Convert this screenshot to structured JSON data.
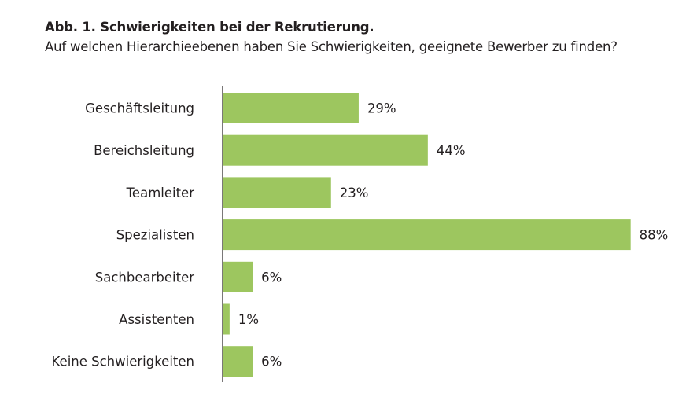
{
  "chart_data": {
    "type": "bar",
    "orientation": "horizontal",
    "title": "Abb. 1. Schwierigkeiten bei der Rekrutierung.",
    "subtitle": "Auf welchen Hierarchieebenen haben Sie Schwierigkeiten, geeignete Bewerber zu finden?",
    "categories": [
      "Geschäftsleitung",
      "Bereichsleitung",
      "Teamleiter",
      "Spezialisten",
      "Sachbearbeiter",
      "Assistenten",
      "Keine Schwierigkeiten"
    ],
    "values": [
      29,
      44,
      23,
      88,
      6,
      1,
      6
    ],
    "value_labels": [
      "29%",
      "44%",
      "23%",
      "88%",
      "6%",
      "1%",
      "6%"
    ],
    "unit": "%",
    "xlim": [
      0,
      88
    ],
    "grid": false,
    "legend": "none",
    "bar_color": "#9dc65f"
  }
}
